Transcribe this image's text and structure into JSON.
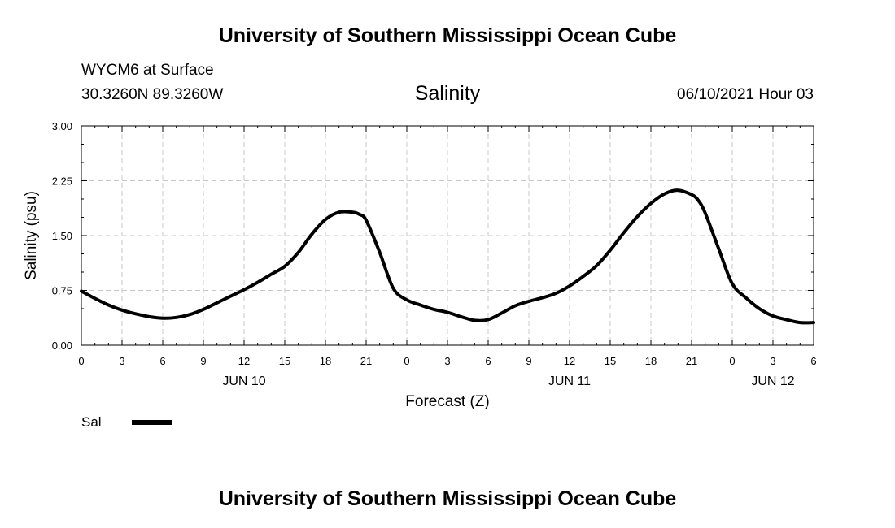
{
  "header": {
    "title": "University of Southern Mississippi Ocean Cube",
    "station": "WYCM6 at Surface",
    "coords": "30.3260N  89.3260W",
    "variable": "Salinity",
    "datetime": "06/10/2021 Hour 03"
  },
  "footer": {
    "title": "University of Southern Mississippi Ocean Cube"
  },
  "legend": {
    "label": "Sal",
    "color": "#000000"
  },
  "chart_data": {
    "type": "line",
    "title": "Salinity",
    "xlabel": "Forecast (Z)",
    "ylabel": "Salinity (psu)",
    "xlim": [
      0,
      54
    ],
    "ylim": [
      0,
      3
    ],
    "grid": true,
    "x_tick_values": [
      0,
      3,
      6,
      9,
      12,
      15,
      18,
      21,
      24,
      27,
      30,
      33,
      36,
      39,
      42,
      45,
      48,
      51,
      54
    ],
    "x_tick_labels": [
      "0",
      "3",
      "6",
      "9",
      "12",
      "15",
      "18",
      "21",
      "0",
      "3",
      "6",
      "9",
      "12",
      "15",
      "18",
      "21",
      "0",
      "3",
      "6"
    ],
    "y_tick_values": [
      0,
      0.75,
      1.5,
      2.25,
      3
    ],
    "y_tick_labels": [
      "0.00",
      "0.75",
      "1.50",
      "2.25",
      "3.00"
    ],
    "day_labels": [
      {
        "x": 12,
        "label": "JUN 10"
      },
      {
        "x": 36,
        "label": "JUN 11"
      },
      {
        "x": 51,
        "label": "JUN 12"
      }
    ],
    "series": [
      {
        "name": "Sal",
        "x": [
          0,
          1,
          2,
          3,
          4,
          5,
          6,
          7,
          8,
          9,
          10,
          11,
          12,
          13,
          14,
          15,
          16,
          17,
          18,
          19,
          20,
          20.5,
          21,
          22,
          23,
          24,
          25,
          26,
          27,
          28,
          29,
          30,
          31,
          32,
          33,
          34,
          35,
          36,
          37,
          38,
          39,
          40,
          41,
          42,
          43,
          44,
          45,
          45.5,
          46,
          47,
          48,
          49,
          50,
          51,
          52,
          53,
          54
        ],
        "values": [
          0.74,
          0.64,
          0.55,
          0.48,
          0.43,
          0.39,
          0.37,
          0.38,
          0.42,
          0.49,
          0.58,
          0.67,
          0.76,
          0.86,
          0.97,
          1.08,
          1.27,
          1.52,
          1.72,
          1.82,
          1.82,
          1.79,
          1.71,
          1.27,
          0.78,
          0.62,
          0.55,
          0.49,
          0.45,
          0.39,
          0.34,
          0.35,
          0.44,
          0.54,
          0.6,
          0.65,
          0.71,
          0.81,
          0.94,
          1.09,
          1.3,
          1.54,
          1.76,
          1.94,
          2.07,
          2.12,
          2.06,
          1.98,
          1.81,
          1.32,
          0.84,
          0.65,
          0.5,
          0.4,
          0.35,
          0.31,
          0.31
        ]
      }
    ]
  }
}
